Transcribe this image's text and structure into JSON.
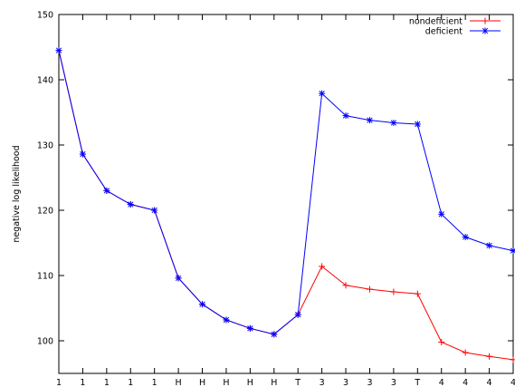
{
  "chart_data": {
    "type": "line",
    "title": "",
    "xlabel": "",
    "ylabel": "negative log likelihood",
    "categories": [
      "1",
      "1",
      "1",
      "1",
      "1",
      "H",
      "H",
      "H",
      "H",
      "H",
      "T",
      "3",
      "3",
      "3",
      "3",
      "T",
      "4",
      "4",
      "4",
      "4"
    ],
    "ylim": [
      95,
      150
    ],
    "y_ticks": [
      100,
      110,
      120,
      130,
      140,
      150
    ],
    "grid": false,
    "legend_position": "top-right",
    "series": [
      {
        "name": "nondeficient",
        "color": "#ff0000",
        "marker": "plus",
        "values": [
          144.5,
          128.6,
          123.0,
          120.9,
          120.0,
          109.6,
          105.6,
          103.2,
          101.9,
          101.0,
          104.0,
          111.4,
          108.5,
          107.9,
          107.5,
          107.2,
          99.8,
          98.2,
          97.6,
          97.1
        ]
      },
      {
        "name": "deficient",
        "color": "#0000ff",
        "marker": "star",
        "values": [
          144.5,
          128.6,
          123.0,
          120.9,
          120.0,
          109.6,
          105.6,
          103.2,
          101.9,
          101.0,
          104.0,
          137.9,
          134.5,
          133.8,
          133.4,
          133.2,
          119.4,
          115.9,
          114.6,
          113.8
        ]
      }
    ]
  }
}
